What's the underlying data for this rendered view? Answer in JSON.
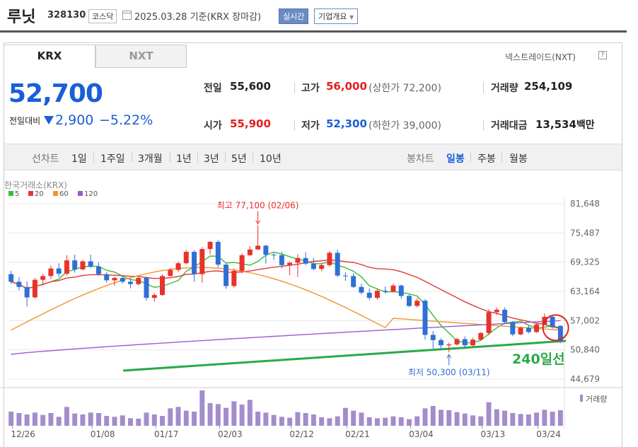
{
  "header": {
    "name": "루닛",
    "code": "328130",
    "market": "코스닥",
    "date": "2025.03.28",
    "date_suffix": "기준(KRX 장마감)",
    "realtime_label": "실시간",
    "company_label": "기업개요"
  },
  "tabs": {
    "krx": "KRX",
    "nxt": "NXT",
    "nxt_link": "넥스트레이드(NXT)"
  },
  "quote": {
    "price": "52,700",
    "change_label": "전일대비",
    "change": "2,900",
    "change_pct": "−5.22%"
  },
  "info": {
    "prev_label": "전일",
    "prev": "55,600",
    "high_label": "고가",
    "high": "56,000",
    "upper_limit": "(상한가 72,200)",
    "volume_label": "거래량",
    "volume": "254,109",
    "open_label": "시가",
    "open": "55,900",
    "low_label": "저가",
    "low": "52,300",
    "lower_limit": "(하한가 39,000)",
    "amount_label": "거래대금",
    "amount": "13,534",
    "amount_unit": "백만"
  },
  "periods": {
    "line_label": "선차트",
    "line_items": [
      "1일",
      "1주일",
      "3개월",
      "1년",
      "3년",
      "5년",
      "10년"
    ],
    "candle_label": "봉차트",
    "candle_items": [
      "일봉",
      "주봉",
      "월봉"
    ],
    "active": "일봉"
  },
  "chart_data": {
    "type": "candlestick",
    "source": "한국거래소(KRX)",
    "legend": [
      "5",
      "20",
      "60",
      "120"
    ],
    "legend_colors": [
      "#3cba3c",
      "#e03a3a",
      "#f0962e",
      "#9c5bd0"
    ],
    "ylim": [
      44679,
      81648
    ],
    "yticks": [
      "81,648",
      "75,487",
      "69,325",
      "63,164",
      "57,002",
      "50,840",
      "44,679"
    ],
    "xticks": [
      "12/26",
      "01/08",
      "01/17",
      "02/03",
      "02/12",
      "02/21",
      "03/04",
      "03/13",
      "03/24"
    ],
    "high_annotation": "최고 77,100 (02/06)",
    "low_annotation": "최저 50,300 (03/11)",
    "trendline_label": "240일선",
    "volume_label": "거래량",
    "candles": [
      [
        66800,
        67500,
        64800,
        65200
      ],
      [
        65200,
        66200,
        63400,
        64100
      ],
      [
        64100,
        65300,
        60000,
        61900
      ],
      [
        61900,
        66000,
        61700,
        65600
      ],
      [
        65600,
        66900,
        64400,
        66400
      ],
      [
        66400,
        68600,
        65800,
        68000
      ],
      [
        68000,
        69100,
        66200,
        66900
      ],
      [
        66900,
        70800,
        66500,
        69700
      ],
      [
        69700,
        70900,
        67100,
        67800
      ],
      [
        67800,
        69800,
        67600,
        69500
      ],
      [
        69500,
        70900,
        68100,
        68400
      ],
      [
        68400,
        69300,
        66500,
        66800
      ],
      [
        66800,
        67200,
        65000,
        65500
      ],
      [
        65500,
        66300,
        64400,
        66000
      ],
      [
        66000,
        66600,
        64800,
        65200
      ],
      [
        65200,
        65900,
        63800,
        64700
      ],
      [
        64700,
        66300,
        64400,
        66000
      ],
      [
        66000,
        66300,
        61200,
        61800
      ],
      [
        61800,
        62800,
        61000,
        62400
      ],
      [
        62400,
        66800,
        62200,
        66400
      ],
      [
        66400,
        68100,
        66300,
        67700
      ],
      [
        67700,
        69500,
        67200,
        69100
      ],
      [
        69100,
        71900,
        68900,
        71500
      ],
      [
        71500,
        71900,
        65200,
        66800
      ],
      [
        66800,
        72500,
        65000,
        72100
      ],
      [
        72100,
        73800,
        71000,
        73600
      ],
      [
        73600,
        74000,
        68200,
        68800
      ],
      [
        68800,
        69200,
        63700,
        64300
      ],
      [
        64300,
        68000,
        64000,
        67500
      ],
      [
        67500,
        71200,
        67000,
        70800
      ],
      [
        70800,
        72700,
        70600,
        72000
      ],
      [
        72000,
        77100,
        71900,
        72800
      ],
      [
        72800,
        73000,
        69000,
        70900
      ],
      [
        70900,
        71300,
        69800,
        70800
      ],
      [
        70800,
        71500,
        68000,
        68700
      ],
      [
        68700,
        69500,
        66600,
        69200
      ],
      [
        69200,
        71000,
        66200,
        70200
      ],
      [
        70200,
        71500,
        68700,
        69000
      ],
      [
        69000,
        70200,
        67600,
        67900
      ],
      [
        67900,
        69100,
        67400,
        68700
      ],
      [
        68700,
        71700,
        68300,
        71300
      ],
      [
        71300,
        72000,
        66200,
        66500
      ],
      [
        66500,
        67200,
        65400,
        66400
      ],
      [
        66400,
        67000,
        63900,
        64100
      ],
      [
        64100,
        64800,
        62500,
        62900
      ],
      [
        62900,
        63800,
        61300,
        61800
      ],
      [
        61800,
        63700,
        61400,
        63300
      ],
      [
        63300,
        64200,
        62700,
        63100
      ],
      [
        63100,
        64800,
        63000,
        64400
      ],
      [
        64400,
        64600,
        61600,
        62200
      ],
      [
        62200,
        62500,
        59800,
        60100
      ],
      [
        60100,
        61800,
        59800,
        61200
      ],
      [
        61200,
        61500,
        53000,
        54000
      ],
      [
        54000,
        54800,
        51100,
        52900
      ],
      [
        52900,
        53300,
        51000,
        51800
      ],
      [
        51800,
        52400,
        50300,
        52000
      ],
      [
        52000,
        53400,
        51700,
        53100
      ],
      [
        53100,
        53700,
        51200,
        51800
      ],
      [
        51800,
        53400,
        51600,
        53000
      ],
      [
        53000,
        54600,
        52800,
        54400
      ],
      [
        54400,
        59400,
        53900,
        58800
      ],
      [
        58800,
        59800,
        58200,
        59300
      ],
      [
        59300,
        59800,
        56300,
        56700
      ],
      [
        56700,
        56900,
        53700,
        54100
      ],
      [
        54100,
        55700,
        53900,
        55500
      ],
      [
        55500,
        56000,
        54300,
        54600
      ],
      [
        54600,
        56500,
        54400,
        56200
      ],
      [
        56200,
        58500,
        56000,
        57800
      ],
      [
        57800,
        58000,
        55300,
        55600
      ],
      [
        55900,
        56000,
        52300,
        52700
      ]
    ],
    "volumes": [
      30,
      27,
      24,
      28,
      23,
      27,
      19,
      40,
      26,
      24,
      28,
      27,
      21,
      19,
      22,
      16,
      15,
      28,
      24,
      21,
      37,
      40,
      32,
      30,
      75,
      48,
      46,
      38,
      52,
      45,
      55,
      30,
      28,
      23,
      19,
      17,
      29,
      27,
      24,
      18,
      16,
      20,
      38,
      32,
      28,
      18,
      16,
      17,
      20,
      18,
      14,
      20,
      37,
      42,
      34,
      33,
      29,
      26,
      22,
      20,
      50,
      35,
      32,
      27,
      25,
      24,
      28,
      34,
      30,
      33
    ]
  }
}
